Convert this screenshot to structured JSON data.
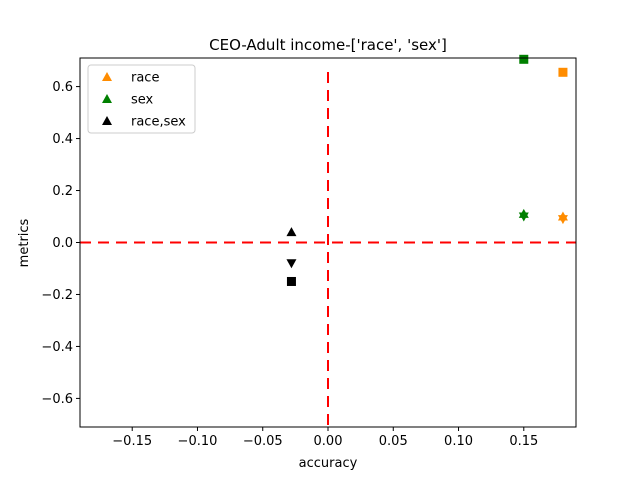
{
  "chart_data": {
    "type": "scatter",
    "title": "CEO-Adult income-['race', 'sex']",
    "xlabel": "accuracy",
    "ylabel": "metrics",
    "xlim": [
      -0.19,
      0.19
    ],
    "ylim": [
      -0.71,
      0.71
    ],
    "xticks": [
      -0.15,
      -0.1,
      -0.05,
      0.0,
      0.05,
      0.1,
      0.15
    ],
    "xtick_labels": [
      "−0.15",
      "−0.10",
      "−0.05",
      "0.00",
      "0.05",
      "0.10",
      "0.15"
    ],
    "yticks": [
      0.6,
      0.4,
      0.2,
      0.0,
      -0.2,
      -0.4,
      -0.6
    ],
    "ytick_labels": [
      "0.6",
      "0.4",
      "0.2",
      "0.0",
      "−0.2",
      "−0.4",
      "−0.6"
    ],
    "reference_lines": {
      "x": 0.0,
      "y": 0.0,
      "color": "#ff0000",
      "style": "dashed"
    },
    "legend_position": "top-left",
    "series": [
      {
        "name": "race",
        "color": "#ff8c00",
        "points": [
          {
            "x": 0.18,
            "y": 0.1,
            "marker": "triangle-up"
          },
          {
            "x": 0.18,
            "y": 0.09,
            "marker": "triangle-down"
          },
          {
            "x": 0.18,
            "y": 0.655,
            "marker": "square"
          }
        ]
      },
      {
        "name": "sex",
        "color": "#008000",
        "points": [
          {
            "x": 0.15,
            "y": 0.11,
            "marker": "triangle-up"
          },
          {
            "x": 0.15,
            "y": 0.1,
            "marker": "triangle-down"
          },
          {
            "x": 0.15,
            "y": 0.705,
            "marker": "square"
          }
        ]
      },
      {
        "name": "race,sex",
        "color": "#000000",
        "points": [
          {
            "x": -0.028,
            "y": 0.04,
            "marker": "triangle-up"
          },
          {
            "x": -0.028,
            "y": -0.08,
            "marker": "triangle-down"
          },
          {
            "x": -0.028,
            "y": -0.15,
            "marker": "square"
          }
        ]
      }
    ]
  }
}
